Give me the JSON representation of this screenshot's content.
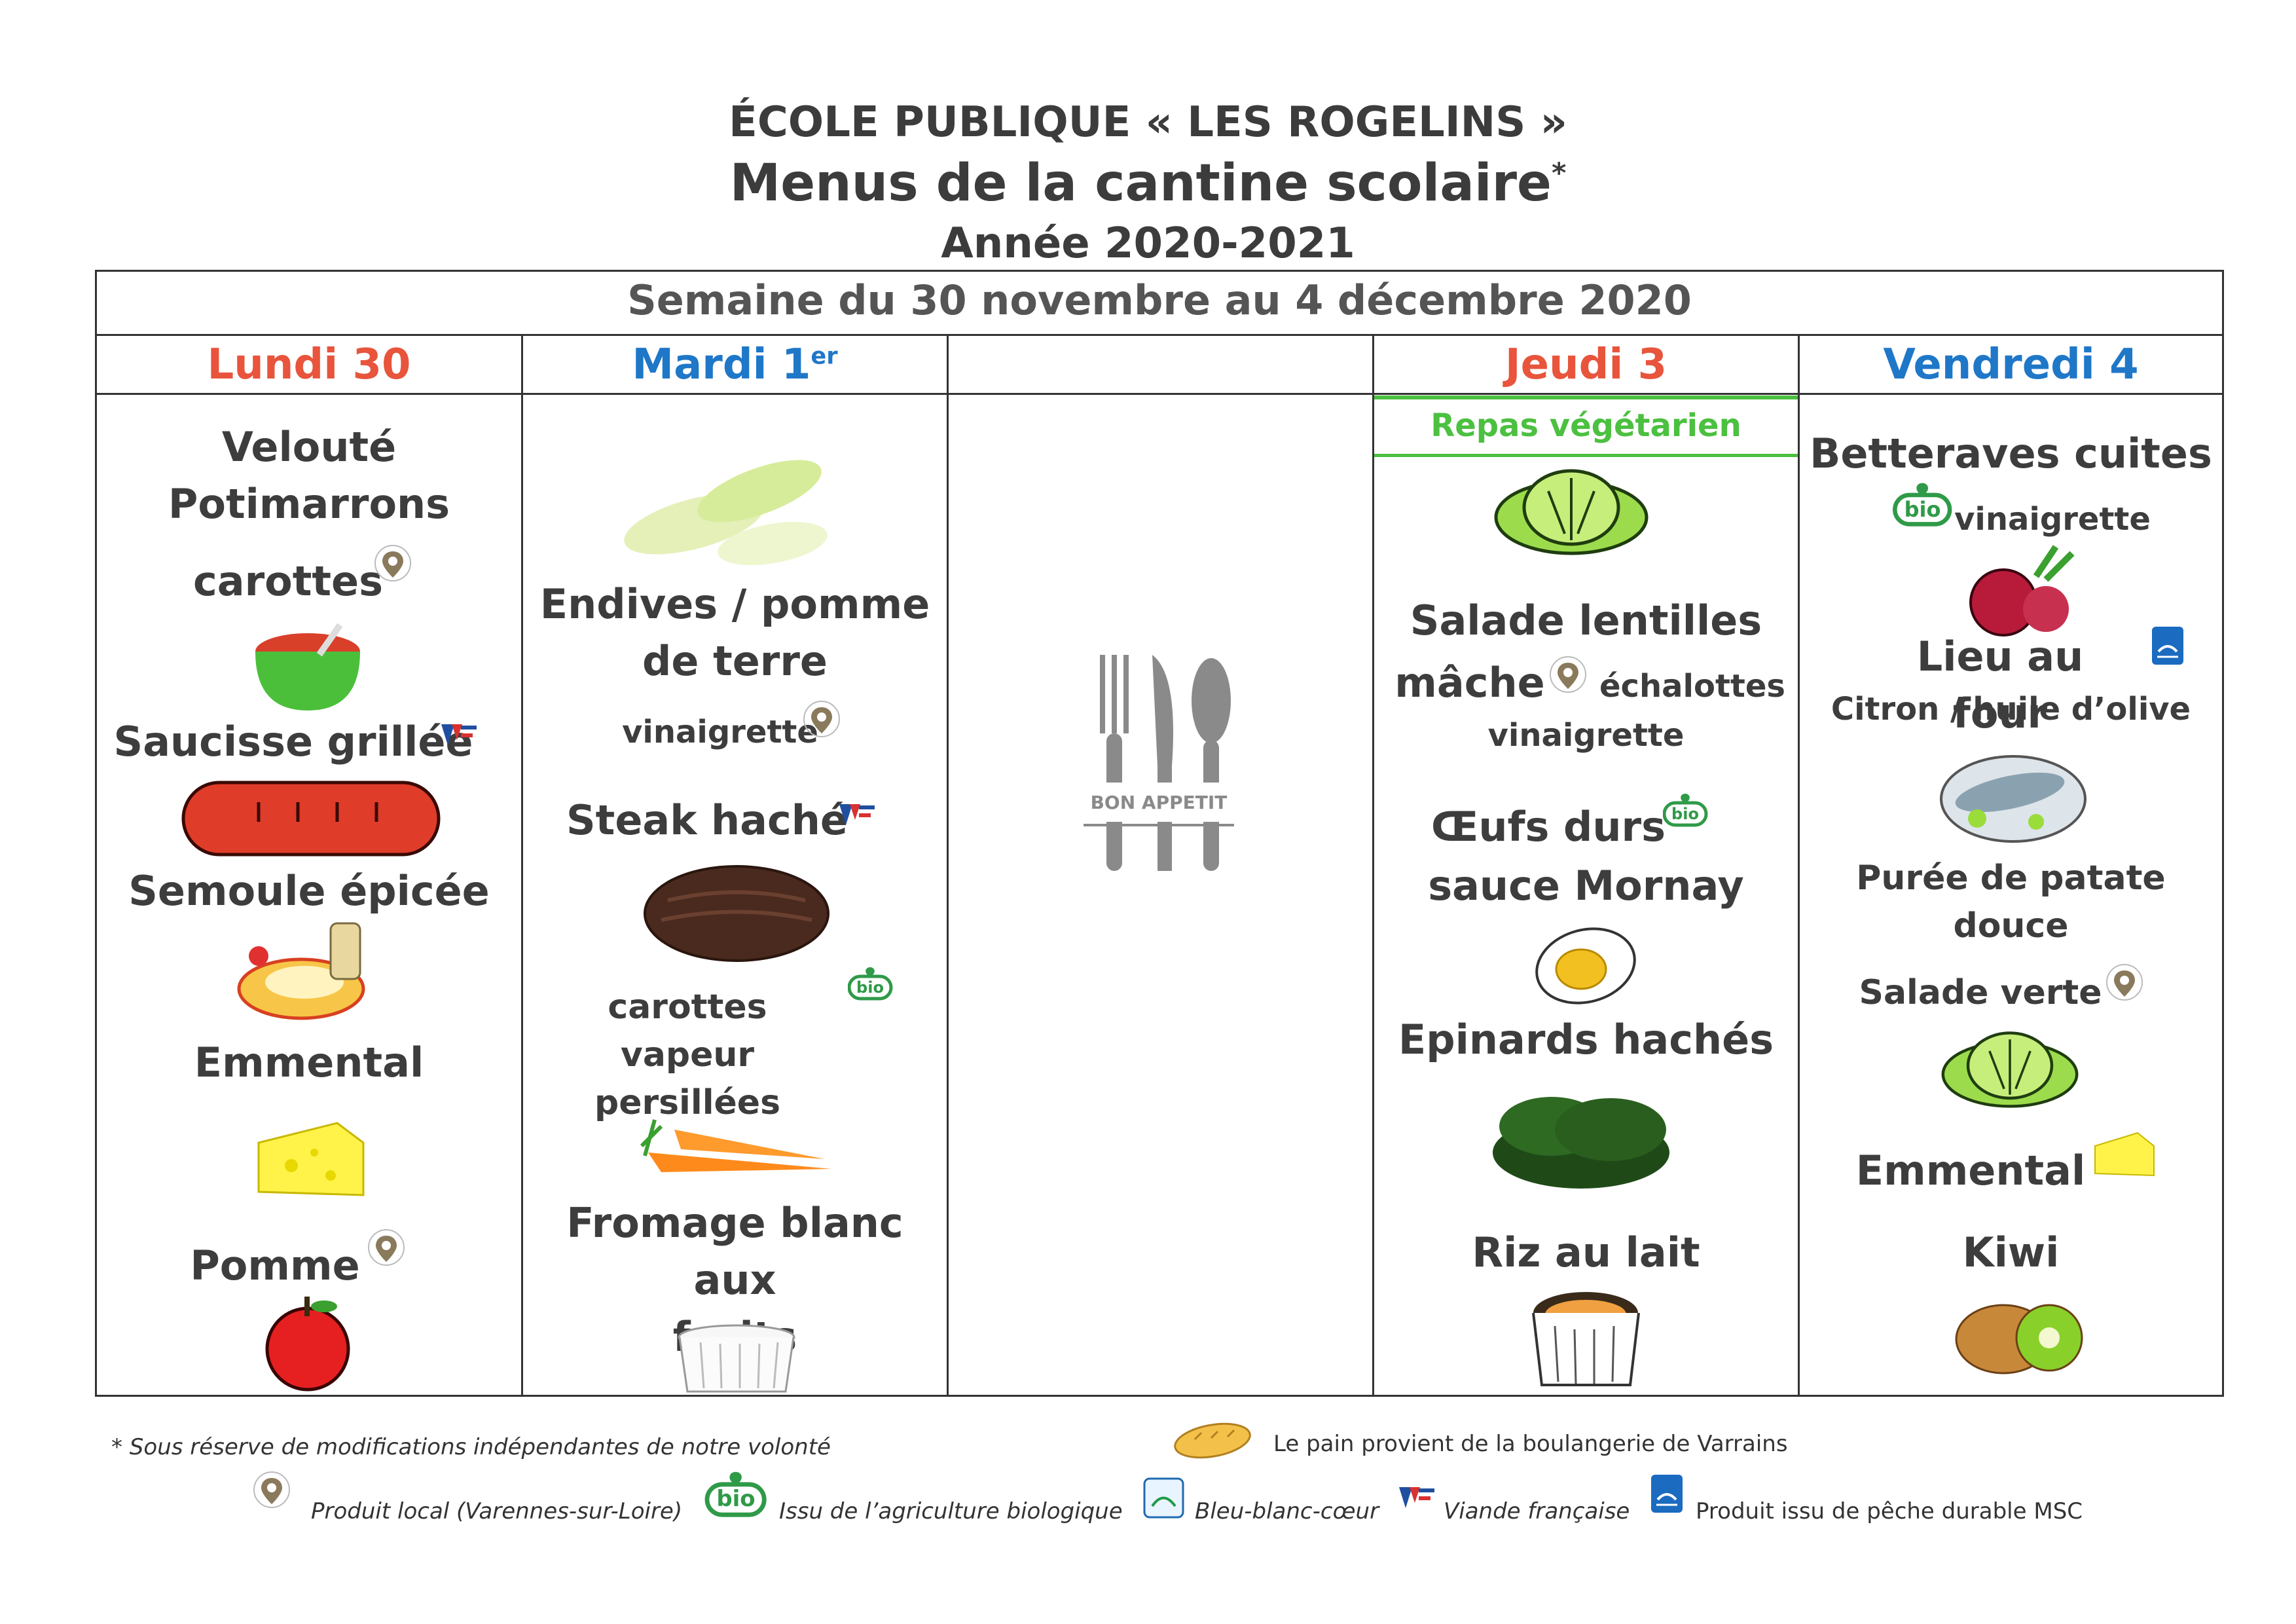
{
  "header": {
    "school": "ÉCOLE PUBLIQUE « LES ROGELINS »",
    "title": "Menus de la cantine scolaire",
    "title_mark": "*",
    "year": "Année 2020-2021"
  },
  "week": "Semaine du 30 novembre au 4 décembre 2020",
  "days": {
    "mon": {
      "label": "Lundi 30",
      "color": "#e8543c"
    },
    "tue": {
      "label": "Mardi 1",
      "sup": "er",
      "color": "#1f77c8"
    },
    "wed": {
      "label": ""
    },
    "thu": {
      "label": "Jeudi 3",
      "color": "#e8543c",
      "note": "Repas végétarien",
      "note_color": "#4cc040"
    },
    "fri": {
      "label": "Vendredi 4",
      "color": "#1f77c8"
    }
  },
  "mon": {
    "d1a": "Velouté",
    "d1b": "Potimarrons",
    "d1c": "carottes",
    "d2": "Saucisse grillée",
    "d3": "Semoule épicée",
    "d4": "Emmental",
    "d5": "Pomme"
  },
  "tue": {
    "d1a": "Endives / pomme",
    "d1b": "de terre",
    "d1c": "vinaigrette",
    "d2": "Steak haché",
    "d3a": "carottes vapeur",
    "d3b": "persillées",
    "d4a": "Fromage blanc aux",
    "d4b": "fruits"
  },
  "wed": {
    "bon": "BON APPETIT"
  },
  "thu": {
    "d1a": "Salade lentilles",
    "d1b": "mâche",
    "d1c": "échalottes",
    "d1d": "vinaigrette",
    "d2a": "Œufs durs",
    "d2b": "sauce Mornay",
    "d3": "Epinards hachés",
    "d4": "Riz au lait"
  },
  "fri": {
    "d1a": "Betteraves cuites",
    "d1b": "vinaigrette",
    "d2a": "Lieu au four",
    "d2b": "Citron / huile d’olive",
    "d3a": "Purée de patate",
    "d3b": "douce",
    "d3c": "Salade verte",
    "d4": "Emmental",
    "d5": "Kiwi"
  },
  "labels": {
    "bio": "bio"
  },
  "legend": {
    "note": "* Sous réserve de modifications indépendantes de notre volonté",
    "bread": "Le pain provient de la boulangerie de Varrains",
    "local": "Produit local (Varennes-sur-Loire)",
    "bio": "Issu de l’agriculture biologique",
    "bbc": "Bleu-blanc-cœur",
    "vf": "Viande française",
    "msc": "Produit issu de pêche durable MSC"
  },
  "colors": {
    "grid": "#333333",
    "vf_blue": "#1f4fa0",
    "vf_red": "#d93030",
    "bio_green": "#2f9a48",
    "msc_blue": "#1b6bc0"
  }
}
